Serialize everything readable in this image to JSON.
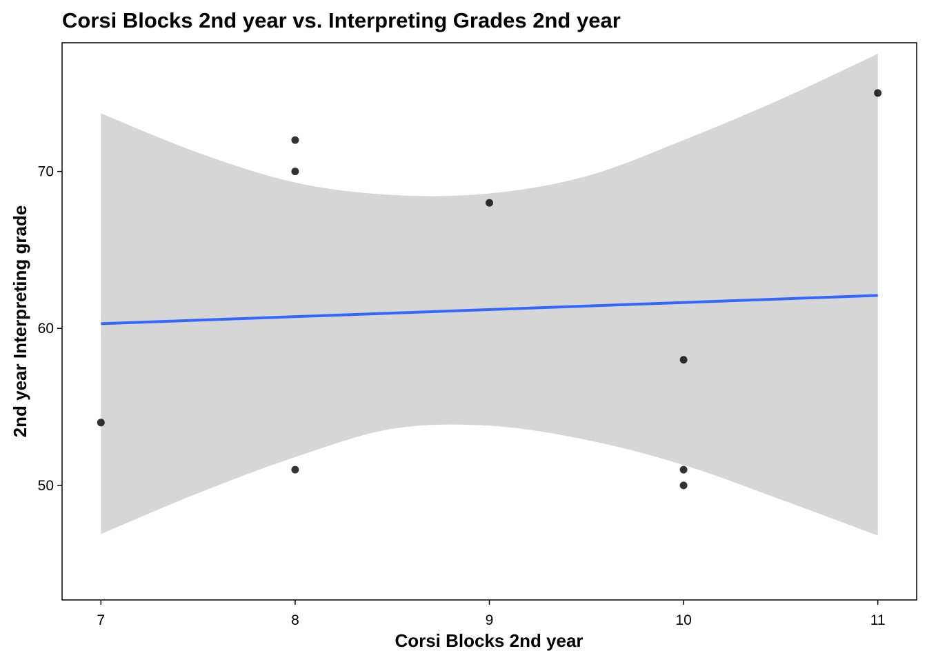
{
  "chart_data": {
    "type": "scatter",
    "title": "Corsi Blocks 2nd year vs. Interpreting Grades 2nd year",
    "xlabel": "Corsi Blocks 2nd year",
    "ylabel": "2nd year Interpreting grade",
    "xlim": [
      6.8,
      11.2
    ],
    "ylim": [
      42.7,
      78.2
    ],
    "x_ticks": [
      7,
      8,
      9,
      10,
      11
    ],
    "y_ticks": [
      50,
      60,
      70
    ],
    "grid": false,
    "legend": "none",
    "points": [
      {
        "x": 7,
        "y": 54
      },
      {
        "x": 8,
        "y": 72
      },
      {
        "x": 8,
        "y": 70
      },
      {
        "x": 8,
        "y": 51
      },
      {
        "x": 9,
        "y": 68
      },
      {
        "x": 10,
        "y": 58
      },
      {
        "x": 10,
        "y": 51
      },
      {
        "x": 10,
        "y": 50
      },
      {
        "x": 11,
        "y": 75
      }
    ],
    "fit_line": {
      "method": "linear",
      "x": [
        7,
        11
      ],
      "y": [
        60.3,
        62.1
      ]
    },
    "confidence_band": {
      "x": [
        7,
        7.5,
        8,
        8.5,
        9,
        9.5,
        10,
        10.5,
        11
      ],
      "upper": [
        73.7,
        71.2,
        69.3,
        68.5,
        68.6,
        69.7,
        72.0,
        74.6,
        77.5
      ],
      "lower": [
        46.9,
        49.5,
        51.8,
        53.6,
        53.8,
        52.9,
        51.3,
        49.1,
        46.8
      ]
    },
    "colors": {
      "points": "#000000",
      "fit_line": "#3366FF",
      "band": "#D6D6D6",
      "panel_border": "#000000"
    }
  }
}
